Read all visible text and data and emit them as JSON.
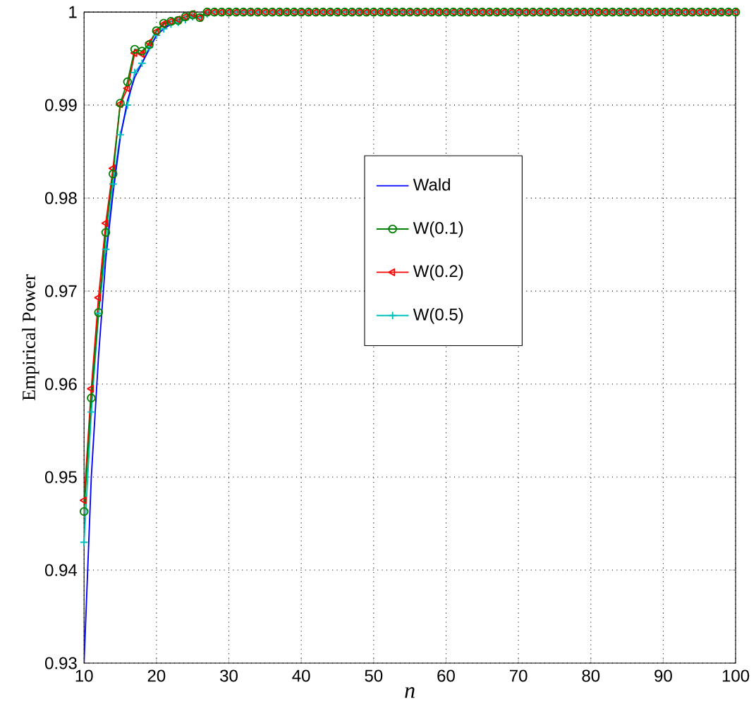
{
  "chart_data": {
    "type": "line",
    "xlabel": "n",
    "ylabel": "Empirical Power",
    "xlim": [
      10,
      100
    ],
    "ylim": [
      0.93,
      1
    ],
    "xticks": [
      10,
      20,
      30,
      40,
      50,
      60,
      70,
      80,
      90,
      100
    ],
    "yticks": [
      0.93,
      0.94,
      0.95,
      0.96,
      0.97,
      0.98,
      0.99,
      1
    ],
    "grid": true,
    "legend": "right",
    "x": [
      10,
      11,
      12,
      13,
      14,
      15,
      16,
      17,
      18,
      19,
      20,
      21,
      22,
      23,
      24,
      25,
      26,
      27,
      28,
      29,
      30,
      31,
      32,
      33,
      34,
      35,
      36,
      37,
      38,
      39,
      40,
      41,
      42,
      43,
      44,
      45,
      46,
      47,
      48,
      49,
      50,
      51,
      52,
      53,
      54,
      55,
      56,
      57,
      58,
      59,
      60,
      61,
      62,
      63,
      64,
      65,
      66,
      67,
      68,
      69,
      70,
      71,
      72,
      73,
      74,
      75,
      76,
      77,
      78,
      79,
      80,
      81,
      82,
      83,
      84,
      85,
      86,
      87,
      88,
      89,
      90,
      91,
      92,
      93,
      94,
      95,
      96,
      97,
      98,
      99,
      100
    ],
    "series": [
      {
        "name": "Wald",
        "color": "#0000ff",
        "marker": "none",
        "values": [
          0.93,
          0.95,
          0.963,
          0.9735,
          0.9805,
          0.9865,
          0.9905,
          0.993,
          0.9945,
          0.996,
          0.9975,
          0.9982,
          0.9987,
          null,
          null,
          null,
          null,
          null,
          null,
          null,
          null,
          null,
          null,
          null,
          null,
          null,
          null,
          null,
          null,
          null,
          null,
          null,
          null,
          null,
          null,
          null,
          null,
          null,
          null,
          null,
          null,
          null,
          null,
          null,
          null,
          null,
          null,
          null,
          null,
          null,
          null,
          null,
          null,
          null,
          null,
          null,
          null,
          null,
          null,
          null,
          null,
          null,
          null,
          null,
          null,
          null,
          null,
          null,
          null,
          null,
          null,
          null,
          null,
          null,
          null,
          null,
          null,
          null,
          null,
          null,
          null,
          null,
          null,
          null,
          null,
          null,
          null,
          null,
          null,
          null,
          null
        ]
      },
      {
        "name": "W(0.1)",
        "color": "#008000",
        "marker": "circle",
        "values": [
          0.9463,
          0.9585,
          0.9677,
          0.9763,
          0.9826,
          0.9902,
          0.9925,
          0.996,
          0.9958,
          0.9965,
          0.998,
          0.9988,
          0.999,
          0.9991,
          0.9995,
          0.9997,
          0.9994,
          1,
          1,
          1,
          1,
          1,
          1,
          1,
          1,
          1,
          1,
          1,
          1,
          1,
          1,
          1,
          1,
          1,
          1,
          1,
          1,
          1,
          1,
          1,
          1,
          1,
          1,
          1,
          1,
          1,
          1,
          1,
          1,
          1,
          1,
          1,
          1,
          1,
          1,
          1,
          1,
          1,
          1,
          1,
          1,
          1,
          1,
          1,
          1,
          1,
          1,
          1,
          1,
          1,
          1,
          1,
          1,
          1,
          1,
          1,
          1,
          1,
          1,
          1,
          1,
          1,
          1,
          1,
          1,
          1,
          1,
          1,
          1,
          1,
          1
        ]
      },
      {
        "name": "W(0.2)",
        "color": "#ff0000",
        "marker": "triangle",
        "values": [
          0.9475,
          0.9595,
          0.9693,
          0.9773,
          0.9832,
          0.9901,
          0.9918,
          0.9956,
          0.9955,
          0.9967,
          0.9979,
          0.9987,
          0.999,
          0.9992,
          0.9995,
          0.9998,
          0.9994,
          1,
          1,
          1,
          1,
          1,
          1,
          1,
          1,
          1,
          1,
          1,
          1,
          1,
          1,
          1,
          1,
          1,
          1,
          1,
          1,
          1,
          1,
          1,
          1,
          1,
          1,
          1,
          1,
          1,
          1,
          1,
          1,
          1,
          1,
          1,
          1,
          1,
          1,
          1,
          1,
          1,
          1,
          1,
          1,
          1,
          1,
          1,
          1,
          1,
          1,
          1,
          1,
          1,
          1,
          1,
          1,
          1,
          1,
          1,
          1,
          1,
          1,
          1,
          1,
          1,
          1,
          1,
          1,
          1,
          1,
          1,
          1,
          1,
          1
        ]
      },
      {
        "name": "W(0.5)",
        "color": "#00bfbf",
        "marker": "cross",
        "values": [
          0.943,
          0.957,
          0.9676,
          0.9745,
          0.9815,
          0.9868,
          0.99,
          0.9935,
          0.9945,
          0.9962,
          0.9975,
          0.9982,
          0.9987,
          0.9989,
          0.9992,
          0.9995,
          0.9994,
          0.9998,
          1,
          1,
          1,
          1,
          1,
          1,
          1,
          1,
          1,
          1,
          1,
          1,
          1,
          1,
          1,
          1,
          1,
          1,
          1,
          1,
          1,
          1,
          1,
          1,
          1,
          1,
          1,
          1,
          1,
          1,
          1,
          1,
          1,
          1,
          1,
          1,
          1,
          1,
          1,
          1,
          1,
          1,
          1,
          1,
          1,
          1,
          1,
          1,
          1,
          1,
          1,
          1,
          1,
          1,
          1,
          1,
          1,
          1,
          1,
          1,
          1,
          1,
          1,
          1,
          1,
          1,
          1,
          1,
          1,
          1,
          1,
          1,
          1
        ]
      }
    ]
  }
}
